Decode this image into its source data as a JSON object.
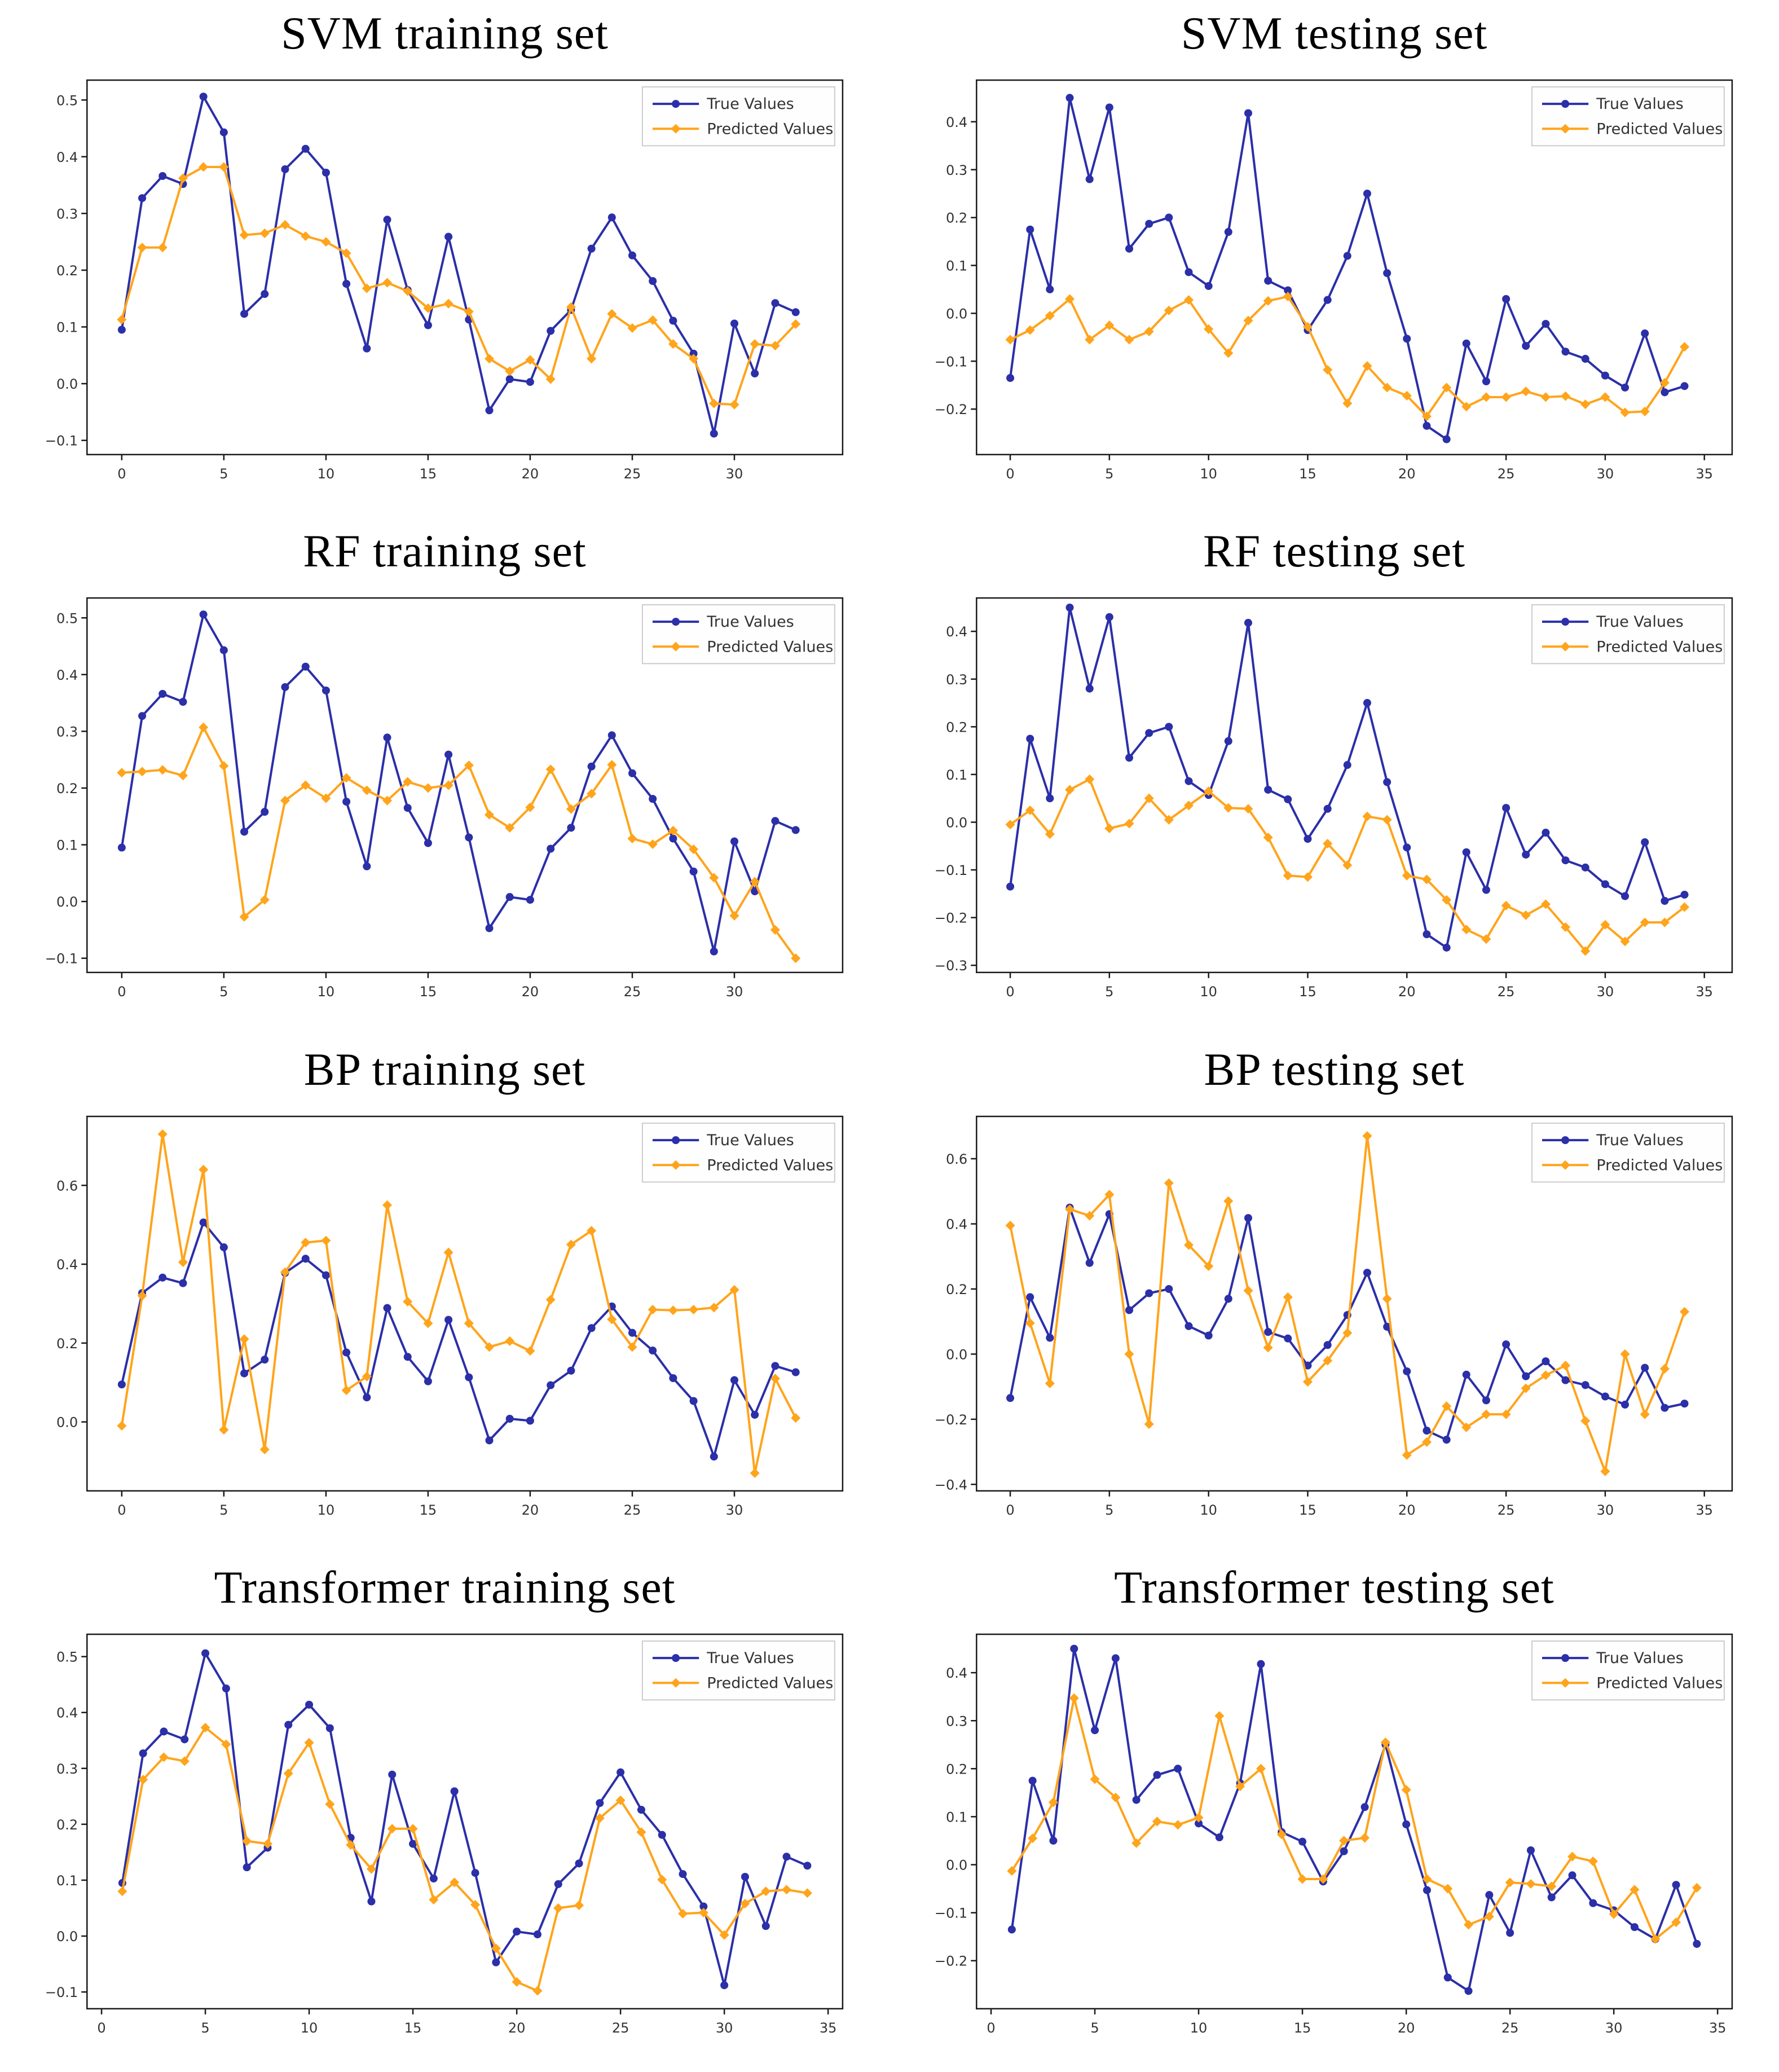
{
  "page": {
    "background": "#ffffff"
  },
  "colors": {
    "true_series": "#2b2fa8",
    "pred_series": "#ffa41b",
    "axis": "#1a1a1a",
    "tick_label": "#333333",
    "legend_border": "#cccccc",
    "legend_bg": "#fefefe"
  },
  "legend": {
    "position": "top-right",
    "entries": [
      "True Values",
      "Predicted Values"
    ]
  },
  "chart_data": [
    {
      "type": "line",
      "title": "SVM training set",
      "x_start": 0,
      "xticks": [
        0,
        5,
        10,
        15,
        20,
        25,
        30
      ],
      "xlim": [
        -1.7,
        35.3
      ],
      "yticks": [
        0.5,
        0.4,
        0.3,
        0.2,
        0.1,
        0.0,
        -0.1
      ],
      "ylim": [
        -0.125,
        0.535
      ],
      "grid": false,
      "series": [
        {
          "name": "True Values",
          "marker": "circle",
          "color_key": "true_series",
          "values": [
            0.095,
            0.327,
            0.366,
            0.352,
            0.506,
            0.443,
            0.123,
            0.158,
            0.378,
            0.414,
            0.372,
            0.176,
            0.062,
            0.289,
            0.165,
            0.103,
            0.259,
            0.113,
            -0.047,
            0.008,
            0.003,
            0.093,
            0.13,
            0.238,
            0.293,
            0.226,
            0.181,
            0.111,
            0.053,
            -0.088,
            0.106,
            0.018,
            0.142,
            0.126
          ]
        },
        {
          "name": "Predicted Values",
          "marker": "diamond",
          "color_key": "pred_series",
          "values": [
            0.113,
            0.24,
            0.24,
            0.362,
            0.382,
            0.382,
            0.262,
            0.265,
            0.28,
            0.26,
            0.25,
            0.23,
            0.168,
            0.178,
            0.163,
            0.133,
            0.141,
            0.127,
            0.044,
            0.022,
            0.042,
            0.008,
            0.135,
            0.044,
            0.123,
            0.098,
            0.112,
            0.07,
            0.044,
            -0.035,
            -0.037,
            0.07,
            0.067,
            0.105
          ]
        }
      ]
    },
    {
      "type": "line",
      "title": "SVM testing set",
      "x_start": 0,
      "xticks": [
        0,
        5,
        10,
        15,
        20,
        25,
        30,
        35
      ],
      "xlim": [
        -1.7,
        36.4
      ],
      "yticks": [
        0.4,
        0.3,
        0.2,
        0.1,
        0.0,
        -0.1,
        -0.2
      ],
      "ylim": [
        -0.295,
        0.487
      ],
      "grid": false,
      "series": [
        {
          "name": "True Values",
          "marker": "circle",
          "color_key": "true_series",
          "values": [
            -0.135,
            0.175,
            0.05,
            0.45,
            0.28,
            0.43,
            0.135,
            0.187,
            0.2,
            0.086,
            0.057,
            0.17,
            0.418,
            0.068,
            0.048,
            -0.035,
            0.028,
            0.12,
            0.25,
            0.084,
            -0.053,
            -0.235,
            -0.263,
            -0.063,
            -0.142,
            0.03,
            -0.068,
            -0.022,
            -0.08,
            -0.095,
            -0.13,
            -0.155,
            -0.042,
            -0.165,
            -0.152
          ]
        },
        {
          "name": "Predicted Values",
          "marker": "diamond",
          "color_key": "pred_series",
          "values": [
            -0.055,
            -0.035,
            -0.005,
            0.03,
            -0.055,
            -0.025,
            -0.055,
            -0.038,
            0.006,
            0.028,
            -0.033,
            -0.083,
            -0.015,
            0.026,
            0.035,
            -0.028,
            -0.118,
            -0.188,
            -0.11,
            -0.155,
            -0.172,
            -0.215,
            -0.155,
            -0.195,
            -0.175,
            -0.175,
            -0.163,
            -0.175,
            -0.173,
            -0.19,
            -0.175,
            -0.207,
            -0.205,
            -0.145,
            -0.07
          ]
        }
      ]
    },
    {
      "type": "line",
      "title": "RF training set",
      "x_start": 0,
      "xticks": [
        0,
        5,
        10,
        15,
        20,
        25,
        30
      ],
      "xlim": [
        -1.7,
        35.3
      ],
      "yticks": [
        0.5,
        0.4,
        0.3,
        0.2,
        0.1,
        0.0,
        -0.1
      ],
      "ylim": [
        -0.125,
        0.535
      ],
      "grid": false,
      "series": [
        {
          "name": "True Values",
          "marker": "circle",
          "color_key": "true_series",
          "values": [
            0.095,
            0.327,
            0.366,
            0.352,
            0.506,
            0.443,
            0.123,
            0.158,
            0.378,
            0.414,
            0.372,
            0.176,
            0.062,
            0.289,
            0.165,
            0.103,
            0.259,
            0.113,
            -0.047,
            0.008,
            0.003,
            0.093,
            0.13,
            0.238,
            0.293,
            0.226,
            0.181,
            0.111,
            0.053,
            -0.088,
            0.106,
            0.018,
            0.142,
            0.126
          ]
        },
        {
          "name": "Predicted Values",
          "marker": "diamond",
          "color_key": "pred_series",
          "values": [
            0.227,
            0.229,
            0.232,
            0.222,
            0.307,
            0.239,
            -0.027,
            0.003,
            0.178,
            0.205,
            0.182,
            0.218,
            0.196,
            0.178,
            0.211,
            0.2,
            0.205,
            0.24,
            0.153,
            0.13,
            0.166,
            0.233,
            0.163,
            0.19,
            0.241,
            0.111,
            0.101,
            0.125,
            0.092,
            0.042,
            -0.025,
            0.035,
            -0.05,
            -0.1
          ]
        }
      ]
    },
    {
      "type": "line",
      "title": "RF testing set",
      "x_start": 0,
      "xticks": [
        0,
        5,
        10,
        15,
        20,
        25,
        30,
        35
      ],
      "xlim": [
        -1.7,
        36.4
      ],
      "yticks": [
        0.4,
        0.3,
        0.2,
        0.1,
        0.0,
        -0.1,
        -0.2,
        -0.3
      ],
      "ylim": [
        -0.315,
        0.47
      ],
      "grid": false,
      "series": [
        {
          "name": "True Values",
          "marker": "circle",
          "color_key": "true_series",
          "values": [
            -0.135,
            0.175,
            0.05,
            0.45,
            0.28,
            0.43,
            0.135,
            0.187,
            0.2,
            0.086,
            0.057,
            0.17,
            0.418,
            0.068,
            0.048,
            -0.035,
            0.028,
            0.12,
            0.25,
            0.084,
            -0.053,
            -0.235,
            -0.263,
            -0.063,
            -0.142,
            0.03,
            -0.068,
            -0.022,
            -0.08,
            -0.095,
            -0.13,
            -0.155,
            -0.042,
            -0.165,
            -0.152
          ]
        },
        {
          "name": "Predicted Values",
          "marker": "diamond",
          "color_key": "pred_series",
          "values": [
            -0.005,
            0.025,
            -0.025,
            0.068,
            0.09,
            -0.013,
            -0.003,
            0.05,
            0.005,
            0.035,
            0.065,
            0.03,
            0.028,
            -0.032,
            -0.112,
            -0.115,
            -0.045,
            -0.09,
            0.012,
            0.005,
            -0.112,
            -0.12,
            -0.163,
            -0.225,
            -0.245,
            -0.175,
            -0.195,
            -0.172,
            -0.22,
            -0.27,
            -0.215,
            -0.25,
            -0.21,
            -0.21,
            -0.178
          ]
        }
      ]
    },
    {
      "type": "line",
      "title": "BP training set",
      "x_start": 0,
      "xticks": [
        0,
        5,
        10,
        15,
        20,
        25,
        30
      ],
      "xlim": [
        -1.7,
        35.3
      ],
      "yticks": [
        0.6,
        0.4,
        0.2,
        0.0
      ],
      "ylim": [
        -0.175,
        0.775
      ],
      "grid": false,
      "series": [
        {
          "name": "True Values",
          "marker": "circle",
          "color_key": "true_series",
          "values": [
            0.095,
            0.327,
            0.366,
            0.352,
            0.506,
            0.443,
            0.123,
            0.158,
            0.378,
            0.414,
            0.372,
            0.176,
            0.062,
            0.289,
            0.165,
            0.103,
            0.259,
            0.113,
            -0.047,
            0.008,
            0.003,
            0.093,
            0.13,
            0.238,
            0.293,
            0.226,
            0.181,
            0.111,
            0.053,
            -0.088,
            0.106,
            0.018,
            0.142,
            0.126
          ]
        },
        {
          "name": "Predicted Values",
          "marker": "diamond",
          "color_key": "pred_series",
          "values": [
            -0.01,
            0.32,
            0.73,
            0.405,
            0.64,
            -0.02,
            0.21,
            -0.07,
            0.38,
            0.455,
            0.46,
            0.08,
            0.115,
            0.55,
            0.305,
            0.25,
            0.43,
            0.25,
            0.19,
            0.205,
            0.18,
            0.31,
            0.45,
            0.485,
            0.26,
            0.19,
            0.285,
            0.283,
            0.285,
            0.29,
            0.335,
            -0.13,
            0.11,
            0.01
          ]
        }
      ]
    },
    {
      "type": "line",
      "title": "BP testing set",
      "x_start": 0,
      "xticks": [
        0,
        5,
        10,
        15,
        20,
        25,
        30,
        35
      ],
      "xlim": [
        -1.7,
        36.4
      ],
      "yticks": [
        0.6,
        0.4,
        0.2,
        0.0,
        -0.2,
        -0.4
      ],
      "ylim": [
        -0.42,
        0.73
      ],
      "grid": false,
      "series": [
        {
          "name": "True Values",
          "marker": "circle",
          "color_key": "true_series",
          "values": [
            -0.135,
            0.175,
            0.05,
            0.45,
            0.28,
            0.43,
            0.135,
            0.187,
            0.2,
            0.086,
            0.057,
            0.17,
            0.418,
            0.068,
            0.048,
            -0.035,
            0.028,
            0.12,
            0.25,
            0.084,
            -0.053,
            -0.235,
            -0.263,
            -0.063,
            -0.142,
            0.03,
            -0.068,
            -0.022,
            -0.08,
            -0.095,
            -0.13,
            -0.155,
            -0.042,
            -0.165,
            -0.152
          ]
        },
        {
          "name": "Predicted Values",
          "marker": "diamond",
          "color_key": "pred_series",
          "values": [
            0.395,
            0.095,
            -0.09,
            0.445,
            0.425,
            0.49,
            0.0,
            -0.215,
            0.525,
            0.335,
            0.27,
            0.47,
            0.195,
            0.02,
            0.175,
            -0.085,
            -0.02,
            0.065,
            0.67,
            0.17,
            -0.31,
            -0.27,
            -0.16,
            -0.225,
            -0.185,
            -0.185,
            -0.105,
            -0.065,
            -0.035,
            -0.205,
            -0.36,
            0.0,
            -0.185,
            -0.045,
            0.13
          ]
        }
      ]
    },
    {
      "type": "line",
      "title": "Transformer training set",
      "x_start": 1,
      "xticks": [
        0,
        5,
        10,
        15,
        20,
        25,
        30,
        35
      ],
      "xlim": [
        -0.7,
        35.7
      ],
      "yticks": [
        0.5,
        0.4,
        0.3,
        0.2,
        0.1,
        0.0,
        -0.1
      ],
      "ylim": [
        -0.13,
        0.54
      ],
      "grid": false,
      "series": [
        {
          "name": "True Values",
          "marker": "circle",
          "color_key": "true_series",
          "values": [
            0.095,
            0.327,
            0.366,
            0.352,
            0.506,
            0.443,
            0.123,
            0.158,
            0.378,
            0.414,
            0.372,
            0.176,
            0.062,
            0.289,
            0.165,
            0.103,
            0.259,
            0.113,
            -0.047,
            0.008,
            0.003,
            0.093,
            0.13,
            0.238,
            0.293,
            0.226,
            0.181,
            0.111,
            0.053,
            -0.088,
            0.106,
            0.018,
            0.142,
            0.126
          ]
        },
        {
          "name": "Predicted Values",
          "marker": "diamond",
          "color_key": "pred_series",
          "values": [
            0.08,
            0.28,
            0.32,
            0.313,
            0.373,
            0.343,
            0.17,
            0.165,
            0.291,
            0.346,
            0.236,
            0.163,
            0.12,
            0.192,
            0.192,
            0.065,
            0.096,
            0.056,
            -0.022,
            -0.082,
            -0.098,
            0.05,
            0.055,
            0.211,
            0.243,
            0.186,
            0.101,
            0.04,
            0.042,
            0.002,
            0.058,
            0.08,
            0.083,
            0.077
          ]
        }
      ]
    },
    {
      "type": "line",
      "title": "Transformer testing set",
      "x_start": 1,
      "xticks": [
        0,
        5,
        10,
        15,
        20,
        25,
        30,
        35
      ],
      "xlim": [
        -0.7,
        35.7
      ],
      "yticks": [
        0.4,
        0.3,
        0.2,
        0.1,
        0.0,
        -0.1,
        -0.2
      ],
      "ylim": [
        -0.3,
        0.48
      ],
      "grid": false,
      "series": [
        {
          "name": "True Values",
          "marker": "circle",
          "color_key": "true_series",
          "values": [
            -0.135,
            0.175,
            0.05,
            0.45,
            0.28,
            0.43,
            0.135,
            0.187,
            0.2,
            0.086,
            0.057,
            0.17,
            0.418,
            0.068,
            0.048,
            -0.035,
            0.028,
            0.12,
            0.25,
            0.084,
            -0.053,
            -0.235,
            -0.263,
            -0.063,
            -0.142,
            0.03,
            -0.068,
            -0.022,
            -0.08,
            -0.095,
            -0.13,
            -0.155,
            -0.042,
            -0.165
          ]
        },
        {
          "name": "Predicted Values",
          "marker": "diamond",
          "color_key": "pred_series",
          "values": [
            -0.013,
            0.055,
            0.13,
            0.347,
            0.178,
            0.14,
            0.045,
            0.09,
            0.083,
            0.098,
            0.31,
            0.163,
            0.2,
            0.063,
            -0.03,
            -0.03,
            0.05,
            0.056,
            0.255,
            0.156,
            -0.03,
            -0.05,
            -0.125,
            -0.108,
            -0.037,
            -0.04,
            -0.045,
            0.017,
            0.007,
            -0.103,
            -0.052,
            -0.155,
            -0.12,
            -0.048
          ]
        }
      ]
    }
  ]
}
